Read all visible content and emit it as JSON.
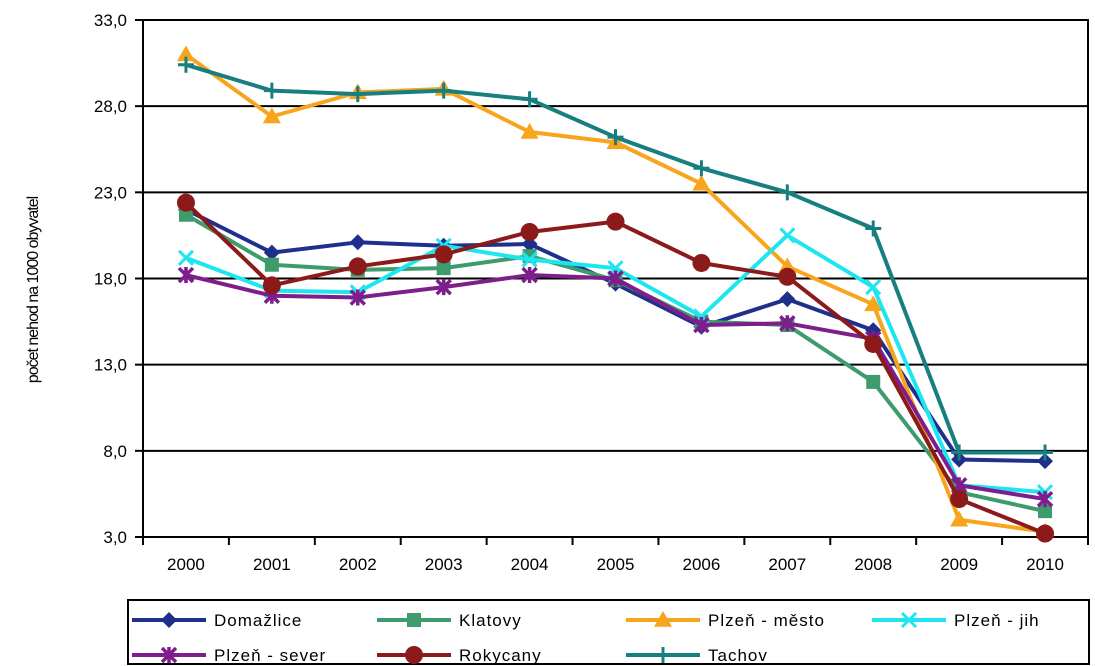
{
  "chart_data": {
    "type": "line",
    "title": "",
    "xlabel": "",
    "ylabel": "počet nehod na 1000 obyvatel",
    "categories": [
      "2000",
      "2001",
      "2002",
      "2003",
      "2004",
      "2005",
      "2006",
      "2007",
      "2008",
      "2009",
      "2010"
    ],
    "y_ticks": [
      "3,0",
      "8,0",
      "13,0",
      "18,0",
      "23,0",
      "28,0",
      "33,0"
    ],
    "y_tick_values": [
      3,
      8,
      13,
      18,
      23,
      28,
      33
    ],
    "ylim": [
      3,
      33
    ],
    "grid": "horizontal",
    "legend_position": "bottom",
    "series": [
      {
        "name": "Domažlice",
        "color": "#1f2f8c",
        "marker": "diamond",
        "values": [
          22.0,
          19.5,
          20.1,
          19.9,
          20.0,
          17.7,
          15.2,
          16.8,
          15.0,
          7.5,
          7.4
        ]
      },
      {
        "name": "Klatovy",
        "color": "#3e9b6b",
        "marker": "square",
        "values": [
          21.7,
          18.8,
          18.5,
          18.6,
          19.3,
          17.9,
          15.5,
          15.3,
          12.0,
          5.6,
          4.5
        ]
      },
      {
        "name": "Plzeň - město",
        "color": "#f7a51c",
        "marker": "triangle",
        "values": [
          31.0,
          27.4,
          28.8,
          29.0,
          26.5,
          25.9,
          23.5,
          18.7,
          16.5,
          4.0,
          3.3
        ]
      },
      {
        "name": "Plzeň - jih",
        "color": "#1de6f0",
        "marker": "x",
        "values": [
          19.2,
          17.3,
          17.2,
          19.9,
          19.1,
          18.6,
          15.8,
          20.5,
          17.5,
          6.0,
          5.6
        ]
      },
      {
        "name": "Plzeň - sever",
        "color": "#7e1e8c",
        "marker": "star",
        "values": [
          18.2,
          17.0,
          16.9,
          17.5,
          18.2,
          18.0,
          15.3,
          15.4,
          14.5,
          6.0,
          5.2
        ]
      },
      {
        "name": "Rokycany",
        "color": "#8c1a1a",
        "marker": "circle",
        "values": [
          22.4,
          17.6,
          18.7,
          19.4,
          20.7,
          21.3,
          18.9,
          18.1,
          14.2,
          5.2,
          3.2
        ]
      },
      {
        "name": "Tachov",
        "color": "#177f80",
        "marker": "plus",
        "values": [
          30.4,
          28.9,
          28.7,
          28.9,
          28.4,
          26.2,
          24.4,
          23.0,
          20.9,
          7.9,
          7.9
        ]
      }
    ]
  }
}
